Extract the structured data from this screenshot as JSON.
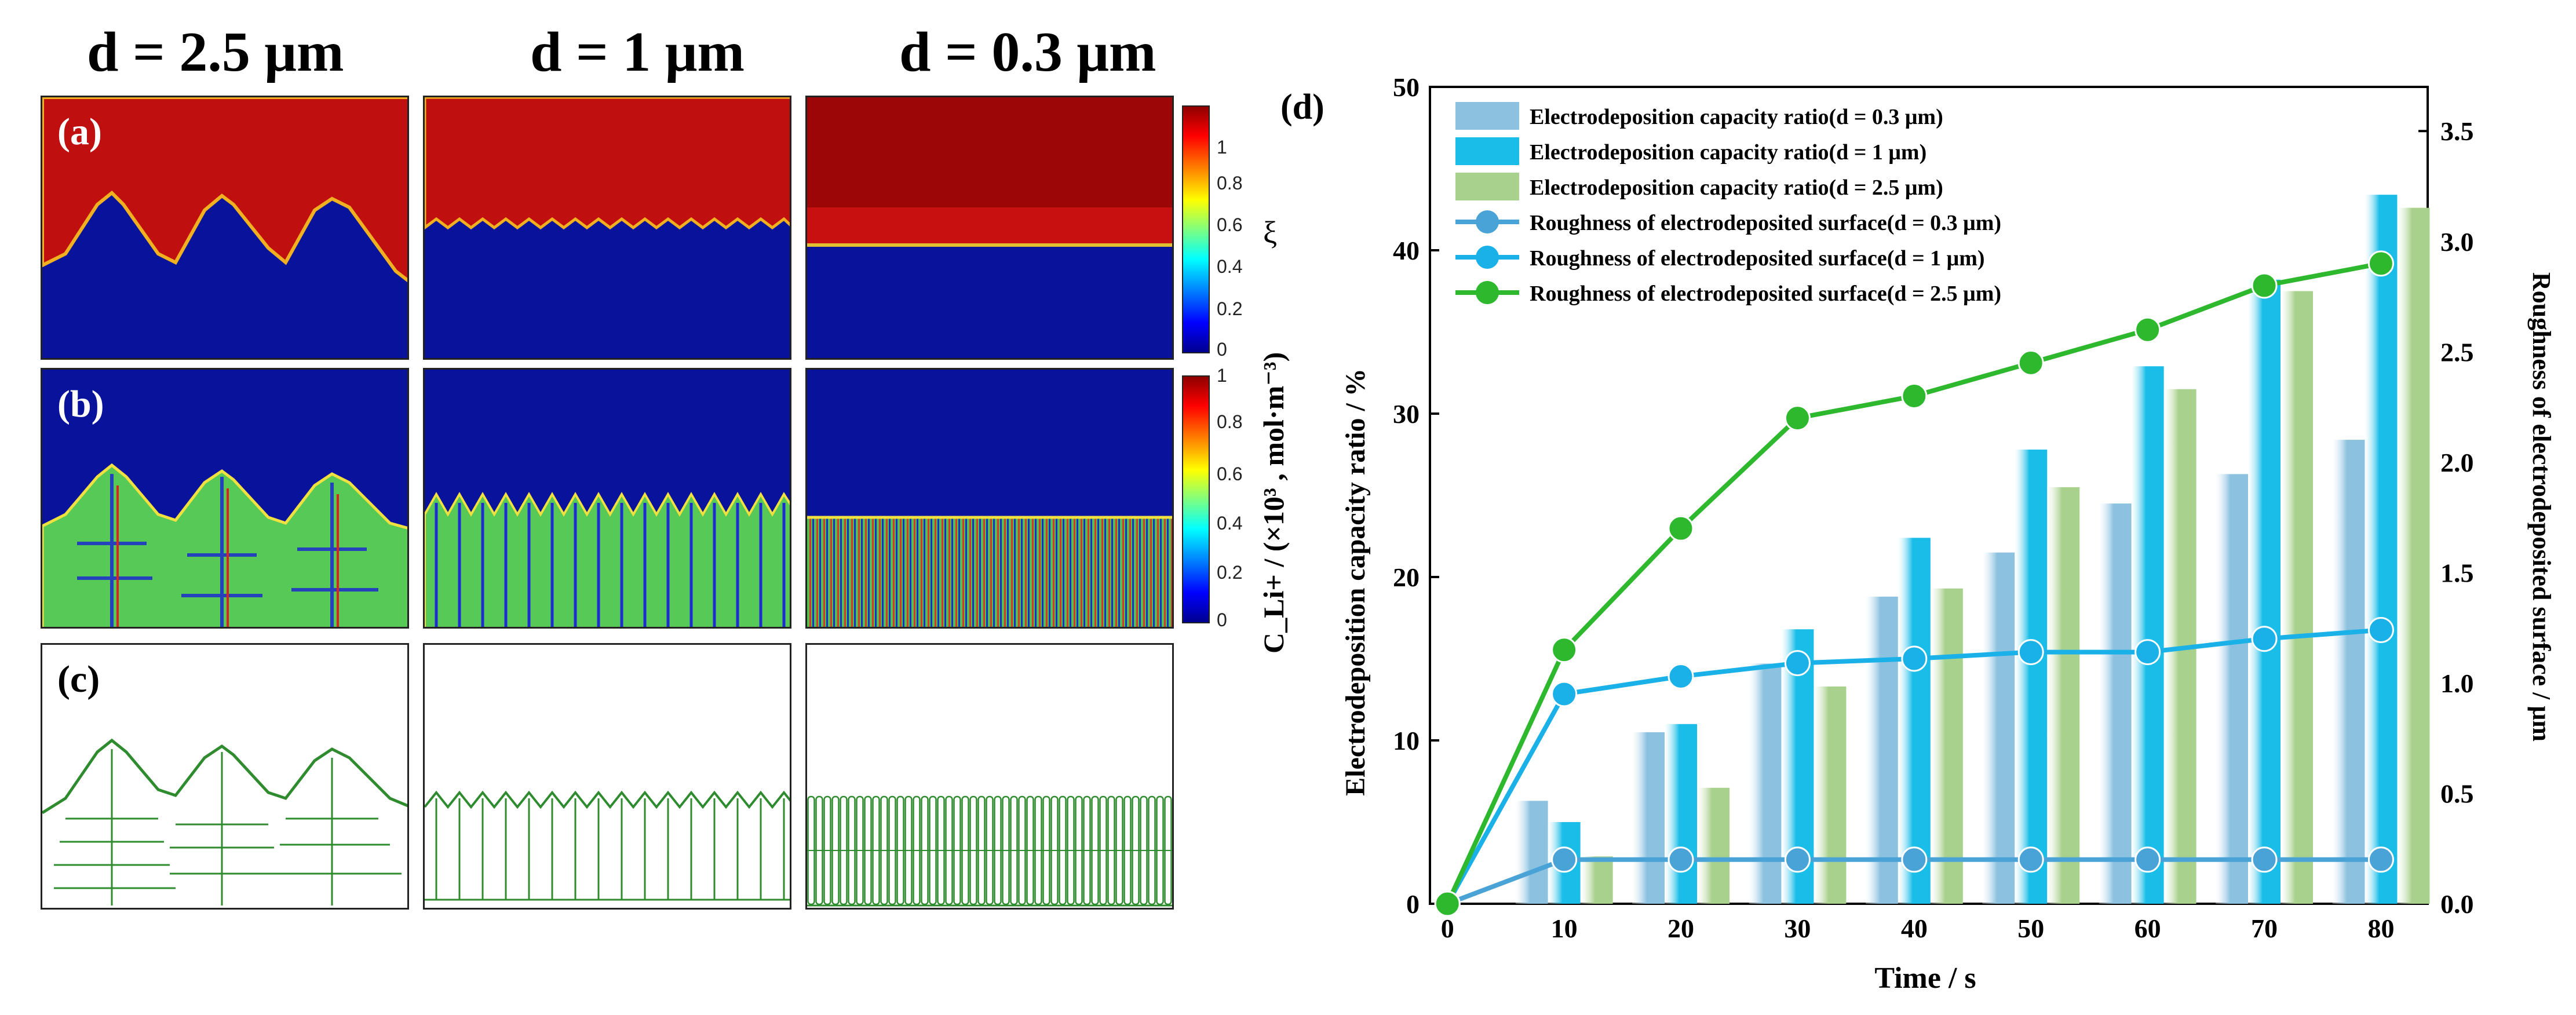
{
  "columns": {
    "c1": "d = 2.5 μm",
    "c2": "d = 1 μm",
    "c3": "d = 0.3 μm"
  },
  "panels": {
    "a": "(a)",
    "b": "(b)",
    "c": "(c)",
    "d": "(d)"
  },
  "colorbars": {
    "xi": {
      "ticks": [
        "1",
        "0.8",
        "0.6",
        "0.4",
        "0.2",
        "0"
      ],
      "label": "ξ"
    },
    "conc": {
      "ticks": [
        "1",
        "0.8",
        "0.6",
        "0.4",
        "0.2",
        "0"
      ],
      "label": "C_Li+ / (×10³ , mol·m⁻³)"
    }
  },
  "colors": {
    "red": "#c00f0f",
    "blue": "#08129a",
    "green": "#2e8b2e"
  },
  "chart_data": {
    "type": "bar",
    "x": [
      0,
      10,
      20,
      30,
      40,
      50,
      60,
      70,
      80
    ],
    "xlabel": "Time / s",
    "ylabel": "Electrodeposition capacity ratio / %",
    "y2label": "Roughness of electrodeposited surface / μm",
    "ylim": [
      0,
      50
    ],
    "y2lim": [
      0,
      3.7
    ],
    "yticks": [
      0,
      10,
      20,
      30,
      40,
      50
    ],
    "y2ticks": [
      0.0,
      0.5,
      1.0,
      1.5,
      2.0,
      2.5,
      3.0,
      3.5
    ],
    "xticks": [
      0,
      10,
      20,
      30,
      40,
      50,
      60,
      70,
      80
    ],
    "bars": [
      {
        "name": "Electrodeposition capacity ratio(d = 0.3 μm)",
        "color": "#8cc2e0",
        "values": [
          6.3,
          10.5,
          14.7,
          18.8,
          21.5,
          24.5,
          26.3,
          28.4
        ]
      },
      {
        "name": "Electrodeposition capacity ratio(d = 1 μm)",
        "color": "#19bde8",
        "values": [
          5.0,
          11.0,
          16.8,
          22.4,
          27.8,
          32.9,
          38.2,
          43.4
        ]
      },
      {
        "name": "Electrodeposition capacity ratio(d = 2.5 μm)",
        "color": "#a9d18e",
        "values": [
          2.9,
          7.1,
          13.3,
          19.3,
          25.5,
          31.5,
          37.5,
          42.6
        ]
      }
    ],
    "lines": [
      {
        "name": "Roughness of electrodeposited surface(d = 0.3 μm)",
        "color": "#4aa3d6",
        "values": [
          0,
          0.2,
          0.2,
          0.2,
          0.2,
          0.2,
          0.2,
          0.2,
          0.2
        ]
      },
      {
        "name": "Roughness of electrodeposited surface(d = 1 μm)",
        "color": "#1ab0e8",
        "values": [
          0,
          0.95,
          1.03,
          1.09,
          1.11,
          1.14,
          1.14,
          1.2,
          1.24
        ]
      },
      {
        "name": "Roughness of electrodeposited surface(d = 2.5 μm)",
        "color": "#2eb82e",
        "values": [
          0,
          1.15,
          1.7,
          2.2,
          2.3,
          2.45,
          2.6,
          2.8,
          2.9
        ]
      }
    ]
  }
}
